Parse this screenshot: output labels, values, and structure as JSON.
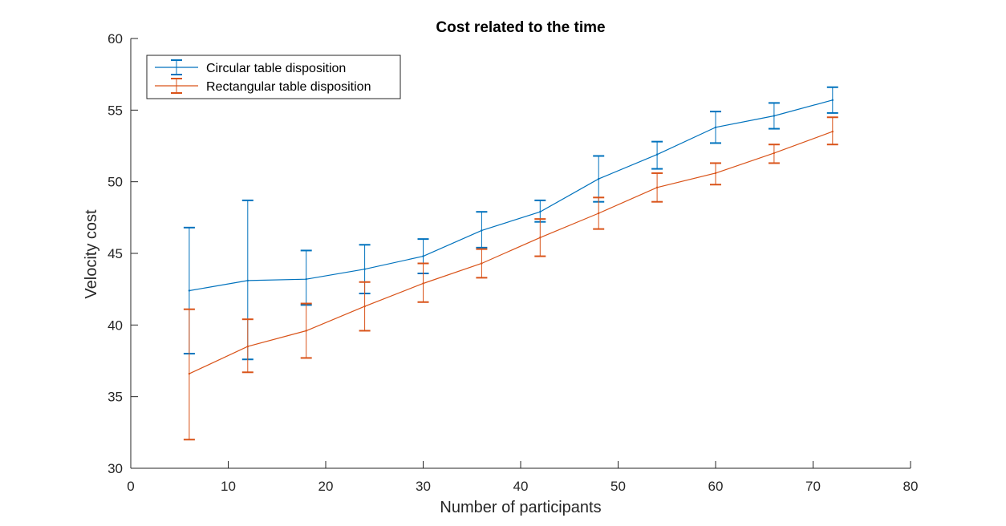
{
  "chart_data": {
    "type": "line",
    "title": "Cost related to the time",
    "xlabel": "Number of participants",
    "ylabel": "Velocity cost",
    "xlim": [
      0,
      80
    ],
    "ylim": [
      30,
      60
    ],
    "xticks": [
      0,
      10,
      20,
      30,
      40,
      50,
      60,
      70,
      80
    ],
    "yticks": [
      30,
      35,
      40,
      45,
      50,
      55,
      60
    ],
    "grid": false,
    "legend_position": "top-left",
    "x": [
      6,
      12,
      18,
      24,
      30,
      36,
      42,
      48,
      54,
      60,
      66,
      72
    ],
    "series": [
      {
        "name": "Circular table disposition",
        "color": "#0072BD",
        "values": [
          42.4,
          43.1,
          43.2,
          43.9,
          44.8,
          46.6,
          47.9,
          50.2,
          51.9,
          53.8,
          54.6,
          55.7
        ],
        "err_low": [
          38.0,
          37.6,
          41.4,
          42.2,
          43.6,
          45.4,
          47.2,
          48.6,
          50.9,
          52.7,
          53.7,
          54.8
        ],
        "err_high": [
          46.8,
          48.7,
          45.2,
          45.6,
          46.0,
          47.9,
          48.7,
          51.8,
          52.8,
          54.9,
          55.5,
          56.6
        ]
      },
      {
        "name": "Rectangular table disposition",
        "color": "#D95319",
        "values": [
          36.6,
          38.5,
          39.6,
          41.3,
          42.9,
          44.3,
          46.1,
          47.8,
          49.6,
          50.6,
          52.0,
          53.5
        ],
        "err_low": [
          32.0,
          36.7,
          37.7,
          39.6,
          41.6,
          43.3,
          44.8,
          46.7,
          48.6,
          49.8,
          51.3,
          52.6
        ],
        "err_high": [
          41.1,
          40.4,
          41.5,
          43.0,
          44.3,
          45.3,
          47.4,
          48.9,
          50.6,
          51.3,
          52.6,
          54.5
        ]
      }
    ]
  }
}
